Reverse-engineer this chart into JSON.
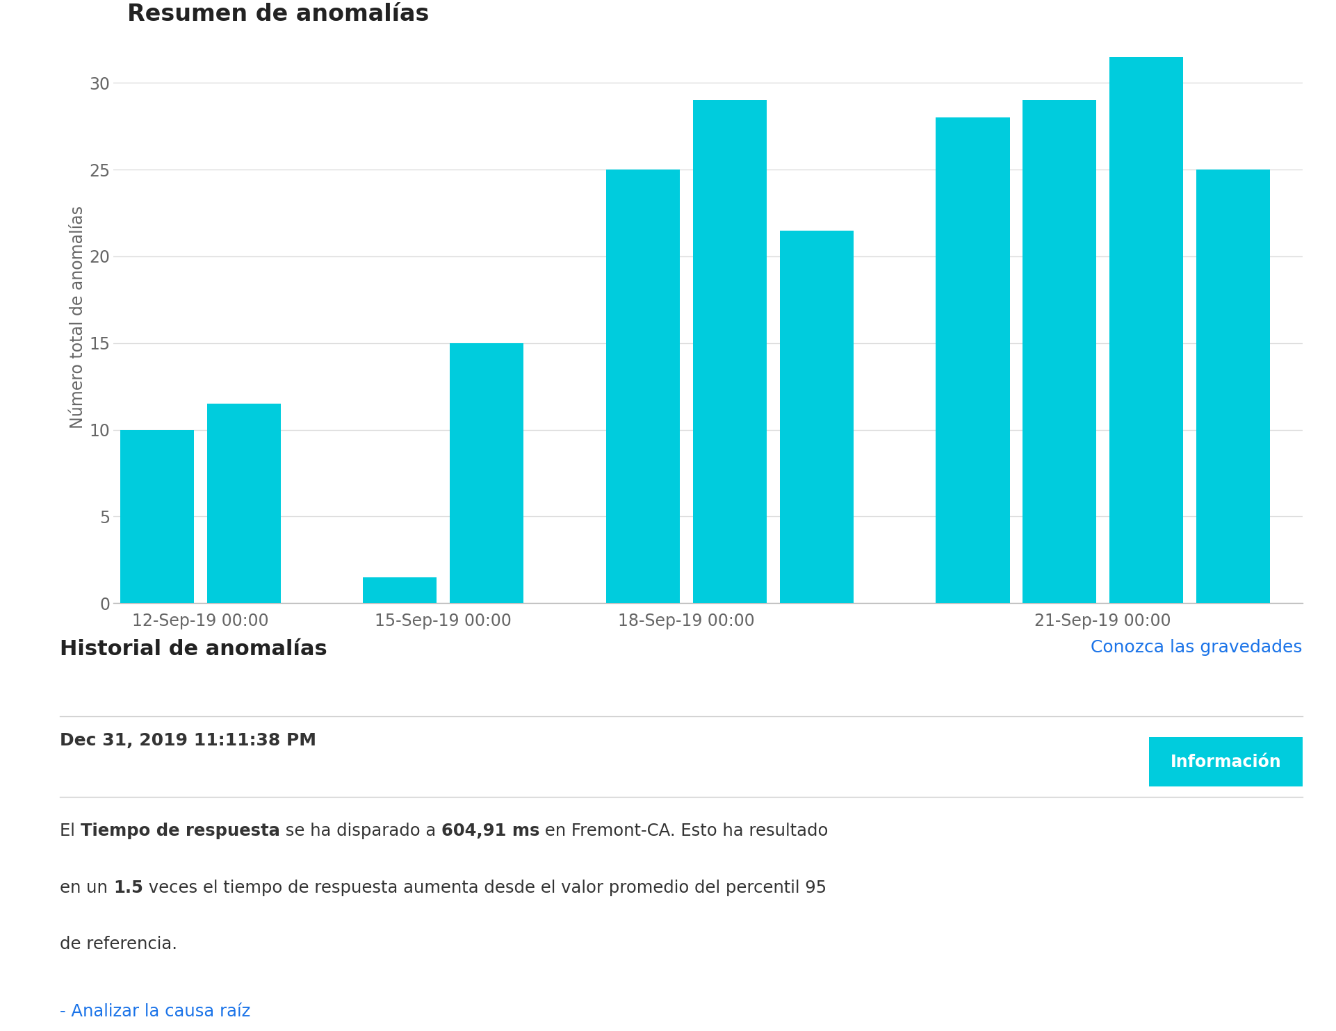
{
  "title": "Resumen de anomalías",
  "bar_values": [
    10,
    11.5,
    1.5,
    15,
    25,
    29,
    21.5,
    28,
    29,
    31.5,
    25
  ],
  "bar_color": "#00CCDD",
  "ylabel": "Número total de anomalías",
  "xtick_labels": [
    "12-Sep-19 00:00",
    "15-Sep-19 00:00",
    "18-Sep-19 00:00",
    "21-Sep-19 00:00"
  ],
  "xtick_positions": [
    0.5,
    3.5,
    6.5,
    9.5
  ],
  "ytick_values": [
    0,
    5,
    10,
    15,
    20,
    25,
    30
  ],
  "ylim": [
    0,
    33
  ],
  "background_color": "#ffffff",
  "grid_color": "#dddddd",
  "section2_title": "Historial de anomalías",
  "section2_link": "Conozca las gravedades",
  "date_text": "Dec 31, 2019 11:11:38 PM",
  "button_text": "Información",
  "button_color": "#00CCDD",
  "link_text": "- Analizar la causa raíz",
  "link_color": "#1a73e8",
  "body_lines": [
    [
      {
        "text": "El ",
        "bold": false
      },
      {
        "text": "Tiempo de respuesta",
        "bold": true
      },
      {
        "text": " se ha disparado a ",
        "bold": false
      },
      {
        "text": "604,91 ms",
        "bold": true
      },
      {
        "text": " en Fremont-CA. Esto ha resultado",
        "bold": false
      }
    ],
    [
      {
        "text": "en un ",
        "bold": false
      },
      {
        "text": "1.5",
        "bold": true
      },
      {
        "text": " veces el tiempo de respuesta aumenta desde el valor promedio del percentil 95",
        "bold": false
      }
    ],
    [
      {
        "text": "de referencia.",
        "bold": false
      }
    ]
  ]
}
